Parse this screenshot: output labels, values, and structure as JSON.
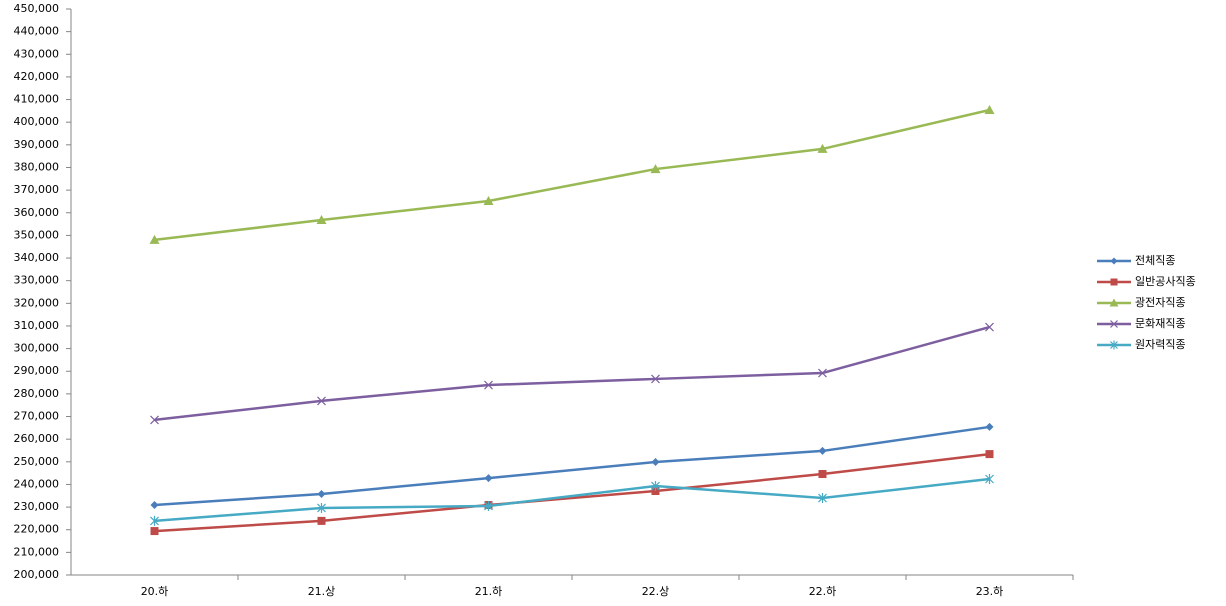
{
  "chart_data": {
    "type": "line",
    "categories": [
      "20.하",
      "21.상",
      "21.하",
      "22.상",
      "22.하",
      "23.하"
    ],
    "series": [
      {
        "name": "전체직종",
        "color": "#4a7ebb",
        "marker": "diamond",
        "values": [
          230900,
          235800,
          242800,
          249900,
          254800,
          265400
        ]
      },
      {
        "name": "일반공사직종",
        "color": "#be4b48",
        "marker": "square",
        "values": [
          219400,
          223900,
          230900,
          237100,
          244600,
          253400
        ]
      },
      {
        "name": "광전자직종",
        "color": "#98b954",
        "marker": "triangle",
        "values": [
          348000,
          356800,
          365200,
          379300,
          388200,
          405400
        ]
      },
      {
        "name": "문화재직종",
        "color": "#7d5fa0",
        "marker": "x",
        "values": [
          268500,
          276900,
          283900,
          286600,
          289200,
          309500
        ]
      },
      {
        "name": "원자력직종",
        "color": "#46aac5",
        "marker": "asterisk",
        "values": [
          223900,
          229600,
          230500,
          239300,
          234000,
          242400
        ]
      }
    ],
    "ylim": [
      200000,
      450000
    ],
    "yticks": [
      {
        "value": 200000,
        "label": "200,000"
      },
      {
        "value": 210000,
        "label": "210,000"
      },
      {
        "value": 220000,
        "label": "220,000"
      },
      {
        "value": 230000,
        "label": "230,000"
      },
      {
        "value": 240000,
        "label": "240,000"
      },
      {
        "value": 250000,
        "label": "250,000"
      },
      {
        "value": 260000,
        "label": "260,000"
      },
      {
        "value": 270000,
        "label": "270,000"
      },
      {
        "value": 280000,
        "label": "280,000"
      },
      {
        "value": 290000,
        "label": "290,000"
      },
      {
        "value": 300000,
        "label": "300,000"
      },
      {
        "value": 310000,
        "label": "310,000"
      },
      {
        "value": 320000,
        "label": "320,000"
      },
      {
        "value": 330000,
        "label": "330,000"
      },
      {
        "value": 340000,
        "label": "340,000"
      },
      {
        "value": 350000,
        "label": "350,000"
      },
      {
        "value": 360000,
        "label": "360,000"
      },
      {
        "value": 370000,
        "label": "370,000"
      },
      {
        "value": 380000,
        "label": "380,000"
      },
      {
        "value": 390000,
        "label": "390,000"
      },
      {
        "value": 400000,
        "label": "400,000"
      },
      {
        "value": 410000,
        "label": "410,000"
      },
      {
        "value": 420000,
        "label": "420,000"
      },
      {
        "value": 430000,
        "label": "430,000"
      },
      {
        "value": 440000,
        "label": "440,000"
      },
      {
        "value": 450000,
        "label": "450,000"
      }
    ],
    "grid": false,
    "legend": "right"
  }
}
